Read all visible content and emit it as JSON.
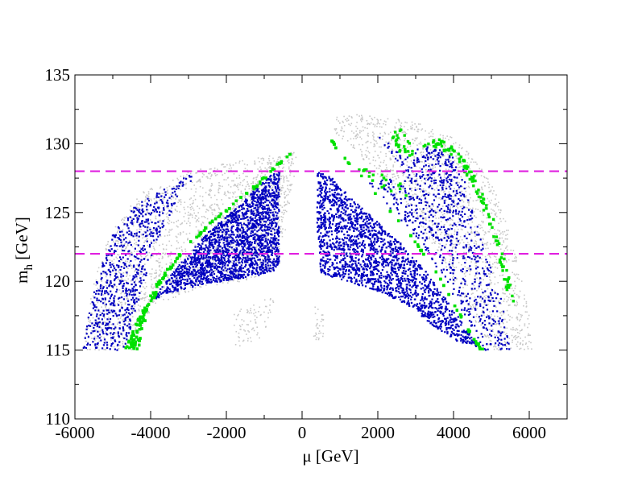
{
  "chart_data": {
    "type": "scatter",
    "title": "",
    "xlabel": "μ [GeV]",
    "ylabel_main": "m",
    "ylabel_sub": "h",
    "ylabel_unit": " [GeV]",
    "xlim": [
      -6000,
      7000
    ],
    "ylim": [
      110,
      135
    ],
    "x_ticks": [
      -6000,
      -4000,
      -2000,
      0,
      2000,
      4000,
      6000
    ],
    "x_tick_labels": [
      "-6000",
      "-4000",
      "-2000",
      "0",
      "2000",
      "4000",
      "6000"
    ],
    "y_ticks": [
      110,
      115,
      120,
      125,
      130,
      135
    ],
    "y_tick_labels": [
      "110",
      "115",
      "120",
      "125",
      "130",
      "135"
    ],
    "grid": false,
    "legend": "none",
    "colors": {
      "all_points": "#c8c8c8",
      "blue_points": "#0000c0",
      "green_points": "#00e000",
      "reference_lines": "#e020e0"
    },
    "reference_lines": [
      {
        "y": 128,
        "style": "dashed"
      },
      {
        "y": 122,
        "style": "dashed"
      }
    ],
    "regions": {
      "gray": [
        [
          [
            -5800,
            115
          ],
          [
            -5500,
            120
          ],
          [
            -5000,
            124
          ],
          [
            -4200,
            126.5
          ],
          [
            -3000,
            128
          ],
          [
            -1800,
            128.7
          ],
          [
            -400,
            129.3
          ],
          [
            -100,
            129.5
          ],
          [
            -600,
            121
          ],
          [
            -900,
            120.5
          ],
          [
            -1600,
            120
          ],
          [
            -2600,
            119.6
          ],
          [
            -3600,
            118.6
          ],
          [
            -4100,
            117.5
          ],
          [
            -4400,
            115
          ]
        ],
        [
          [
            900,
            132.2
          ],
          [
            2000,
            132
          ],
          [
            3000,
            131.6
          ],
          [
            4000,
            130.4
          ],
          [
            4700,
            128.5
          ],
          [
            5200,
            126
          ],
          [
            5700,
            121.5
          ],
          [
            6000,
            117.5
          ],
          [
            6100,
            115
          ],
          [
            5000,
            115
          ],
          [
            4400,
            118
          ],
          [
            3600,
            122
          ],
          [
            2600,
            126
          ],
          [
            1400,
            129.5
          ],
          [
            800,
            131
          ]
        ],
        [
          [
            -3000,
            120.5
          ],
          [
            -2200,
            124.5
          ],
          [
            -1400,
            127.5
          ],
          [
            -500,
            129.3
          ],
          [
            -200,
            129.4
          ],
          [
            -500,
            124.5
          ],
          [
            -700,
            121.5
          ],
          [
            -1400,
            121
          ],
          [
            -2200,
            120.7
          ]
        ],
        [
          [
            -1800,
            115.2
          ],
          [
            -1200,
            115.5
          ],
          [
            -900,
            116.7
          ],
          [
            -700,
            118.8
          ],
          [
            -1300,
            118.6
          ],
          [
            -1800,
            117.6
          ]
        ],
        [
          [
            300,
            115.5
          ],
          [
            600,
            116
          ],
          [
            550,
            117.8
          ],
          [
            300,
            118.2
          ]
        ]
      ],
      "blue": [
        [
          [
            -5800,
            115
          ],
          [
            -5500,
            119.5
          ],
          [
            -5000,
            123.5
          ],
          [
            -4400,
            125.5
          ],
          [
            -3300,
            127.3
          ],
          [
            -2700,
            128
          ],
          [
            -3200,
            126.5
          ],
          [
            -3900,
            122.5
          ],
          [
            -4400,
            117.8
          ],
          [
            -4700,
            115
          ]
        ],
        [
          [
            -4000,
            118.6
          ],
          [
            -3300,
            121
          ],
          [
            -2500,
            123.5
          ],
          [
            -1800,
            125.2
          ],
          [
            -1300,
            126.5
          ],
          [
            -900,
            127.6
          ],
          [
            -600,
            128
          ],
          [
            -600,
            121
          ],
          [
            -900,
            120.5
          ],
          [
            -1600,
            120.2
          ],
          [
            -2600,
            119.8
          ],
          [
            -3400,
            119.2
          ]
        ],
        [
          [
            400,
            128
          ],
          [
            800,
            127.5
          ],
          [
            1200,
            126.3
          ],
          [
            1800,
            124.8
          ],
          [
            2600,
            122.8
          ],
          [
            3400,
            120.3
          ],
          [
            4100,
            117.5
          ],
          [
            4700,
            115.2
          ],
          [
            4200,
            115.5
          ],
          [
            3600,
            116.5
          ],
          [
            2700,
            118.4
          ],
          [
            1900,
            119.4
          ],
          [
            1000,
            120.1
          ],
          [
            500,
            120.6
          ],
          [
            400,
            124
          ]
        ],
        [
          [
            1700,
            127.2
          ],
          [
            2500,
            124.8
          ],
          [
            3200,
            122.5
          ],
          [
            3800,
            120
          ],
          [
            4300,
            117.5
          ],
          [
            4800,
            115
          ],
          [
            5500,
            115
          ],
          [
            5300,
            118.5
          ],
          [
            4800,
            122.5
          ],
          [
            4300,
            127
          ],
          [
            3900,
            130
          ],
          [
            3300,
            129.5
          ],
          [
            2500,
            127.5
          ]
        ],
        [
          [
            2000,
            130.6
          ],
          [
            2800,
            129
          ],
          [
            3200,
            130.3
          ],
          [
            3600,
            129.8
          ],
          [
            4000,
            129
          ],
          [
            4400,
            127.8
          ],
          [
            4200,
            124.5
          ],
          [
            3600,
            125.5
          ],
          [
            3000,
            126.7
          ],
          [
            2600,
            128.2
          ]
        ]
      ],
      "green": [
        {
          "pts": [
            [
              -4700,
              115
            ],
            [
              -4300,
              117.5
            ],
            [
              -3800,
              120
            ],
            [
              -3100,
              122.5
            ],
            [
              -2300,
              124.6
            ],
            [
              -1400,
              126.6
            ],
            [
              -700,
              128.4
            ],
            [
              -200,
              129.5
            ],
            [
              -300,
              129.2
            ],
            [
              -1300,
              126.6
            ],
            [
              -2300,
              124.4
            ],
            [
              -3100,
              122.3
            ],
            [
              -3700,
              120
            ],
            [
              -4200,
              116.8
            ],
            [
              -4300,
              115
            ]
          ],
          "n": 520
        },
        {
          "pts": [
            [
              700,
              130.6
            ],
            [
              1000,
              129.5
            ],
            [
              1600,
              127.4
            ],
            [
              2300,
              125.3
            ],
            [
              3000,
              122.9
            ],
            [
              3600,
              120.5
            ],
            [
              4100,
              118
            ],
            [
              4500,
              116
            ],
            [
              4800,
              115
            ],
            [
              4700,
              115
            ],
            [
              4350,
              116.6
            ],
            [
              3950,
              118.6
            ],
            [
              3450,
              121
            ],
            [
              2800,
              123.5
            ],
            [
              2100,
              125.8
            ],
            [
              1400,
              128
            ],
            [
              800,
              130
            ]
          ],
          "n": 520
        },
        {
          "pts": [
            [
              3100,
              129.8
            ],
            [
              3600,
              130.5
            ],
            [
              4100,
              129.6
            ],
            [
              4600,
              127.6
            ],
            [
              5000,
              125
            ],
            [
              5300,
              122.5
            ],
            [
              5500,
              120.5
            ],
            [
              5600,
              118.5
            ],
            [
              5400,
              119
            ],
            [
              5200,
              121.5
            ],
            [
              4900,
              124.5
            ],
            [
              4500,
              127
            ],
            [
              4100,
              128.8
            ],
            [
              3700,
              129.5
            ]
          ],
          "n": 110
        },
        {
          "pts": [
            [
              2300,
              131.4
            ],
            [
              2800,
              130.8
            ],
            [
              3000,
              129
            ],
            [
              2500,
              129.3
            ]
          ],
          "n": 25
        },
        {
          "pts": [
            [
              1400,
              128.5
            ],
            [
              2600,
              127.2
            ],
            [
              2800,
              126.1
            ],
            [
              1600,
              127.3
            ]
          ],
          "n": 20
        }
      ]
    }
  }
}
